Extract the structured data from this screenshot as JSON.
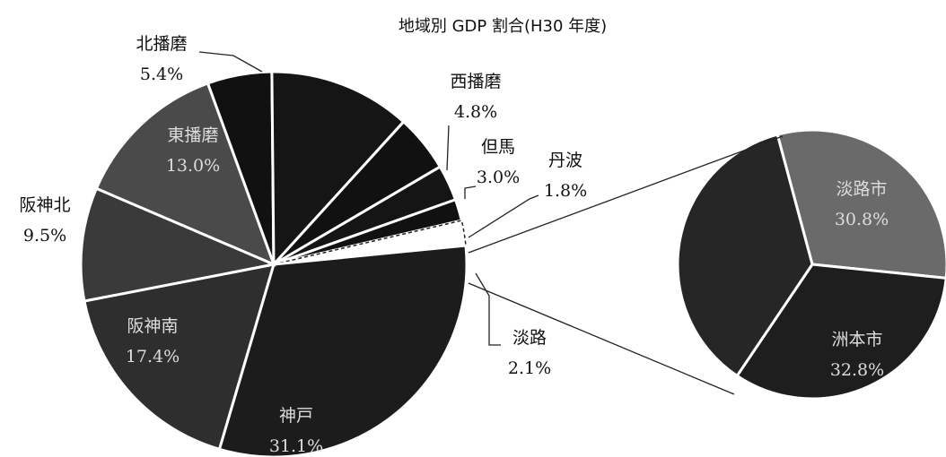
{
  "chart_data": {
    "type": "pie-of-pie",
    "title": "地域別 GDP 割合(H30 年度)",
    "categories": [
      "北播磨",
      null,
      "西播磨",
      "但馬",
      "丹波",
      "淡路",
      "神戸",
      "阪神南",
      "阪神北",
      "東播磨"
    ],
    "values": [
      5.4,
      11.9,
      4.8,
      3.0,
      1.8,
      2.1,
      31.1,
      17.4,
      9.5,
      13.0
    ],
    "value_labels": [
      "5.4%",
      null,
      "4.8%",
      "3.0%",
      "1.8%",
      "2.1%",
      "31.1%",
      "17.4%",
      "9.5%",
      "13.0%"
    ],
    "colors": [
      "#111111",
      "#151515",
      "#111111",
      "#151515",
      "#111111",
      "#ffffff",
      "#1c1c1c",
      "#2e2e2e",
      "#3a3a3a",
      "#4a4a4a"
    ],
    "secondary": {
      "categories": [
        "淡路市",
        "洲本市",
        null
      ],
      "values": [
        30.8,
        32.8,
        36.4
      ],
      "value_labels": [
        "30.8%",
        "32.8%",
        null
      ],
      "colors": [
        "#6a6a6a",
        "#1e1e1e",
        "#262626"
      ]
    }
  }
}
